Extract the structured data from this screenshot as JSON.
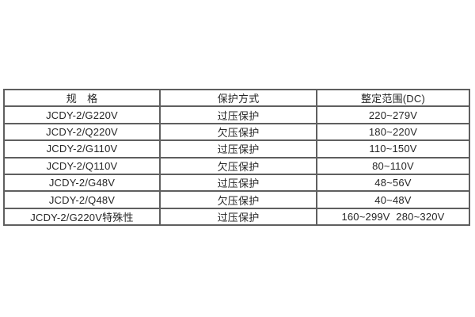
{
  "table": {
    "headers": {
      "spec": "规　格",
      "protection": "保护方式",
      "range": "整定范围(DC)"
    },
    "rows": [
      {
        "spec": "JCDY-2/G220V",
        "protection": "过压保护",
        "range": "220~279V"
      },
      {
        "spec": "JCDY-2/Q220V",
        "protection": "欠压保护",
        "range": "180~220V"
      },
      {
        "spec": "JCDY-2/G110V",
        "protection": "过压保护",
        "range": "110~150V"
      },
      {
        "spec": "JCDY-2/Q110V",
        "protection": "欠压保护",
        "range": "80~110V"
      },
      {
        "spec": "JCDY-2/G48V",
        "protection": "过压保护",
        "range": "48~56V"
      },
      {
        "spec": "JCDY-2/Q48V",
        "protection": "欠压保护",
        "range": "40~48V"
      },
      {
        "spec": "JCDY-2/G220V特殊性",
        "protection": "过压保护",
        "range": "160~299V  280~320V"
      }
    ],
    "style": {
      "border_color": "#5f5f5f",
      "text_color": "#262626",
      "background": "#ffffff"
    }
  }
}
